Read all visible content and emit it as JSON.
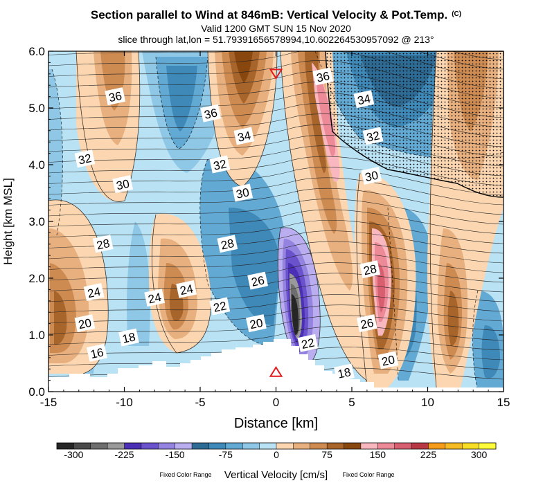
{
  "header": {
    "title": "Section parallel to Wind at 846mB: Vertical Velocity & Pot.Temp.",
    "title_mark": "(C)",
    "valid": "Valid 1200 GMT SUN 15 Nov 2020",
    "slice": "slice through lat,lon = 51.79391656578994,10.602264530957092 @ 213°"
  },
  "chart_data": {
    "type": "heatmap",
    "title": "Section parallel to Wind at 846mB: Vertical Velocity & Pot.Temp.",
    "xlabel": "Distance [km]",
    "ylabel": "Height [km MSL]",
    "xlim": [
      -15,
      15
    ],
    "ylim": [
      0.0,
      6.0
    ],
    "x_ticks": [
      -15,
      -10,
      -5,
      0,
      5,
      10,
      15
    ],
    "x_tick_labels": [
      "-15",
      "-10",
      "-5",
      "0",
      "5",
      "10",
      "15"
    ],
    "y_ticks": [
      0,
      1,
      2,
      3,
      4,
      5,
      6
    ],
    "y_tick_labels": [
      "0.0",
      "1.0",
      "2.0",
      "3.0",
      "4.0",
      "5.0",
      "6.0"
    ],
    "contour_labels": [
      {
        "text": "36",
        "x": -10.6,
        "y": 5.2
      },
      {
        "text": "36",
        "x": -4.3,
        "y": 4.9
      },
      {
        "text": "34",
        "x": -2.1,
        "y": 4.5
      },
      {
        "text": "32",
        "x": -12.6,
        "y": 4.1
      },
      {
        "text": "32",
        "x": -3.7,
        "y": 4.0
      },
      {
        "text": "30",
        "x": -10.1,
        "y": 3.65
      },
      {
        "text": "30",
        "x": -2.2,
        "y": 3.5
      },
      {
        "text": "28",
        "x": -11.4,
        "y": 2.6
      },
      {
        "text": "28",
        "x": -3.2,
        "y": 2.6
      },
      {
        "text": "26",
        "x": -1.2,
        "y": 1.95
      },
      {
        "text": "24",
        "x": -12.0,
        "y": 1.75
      },
      {
        "text": "24",
        "x": -8.0,
        "y": 1.65
      },
      {
        "text": "24",
        "x": -5.9,
        "y": 1.8
      },
      {
        "text": "22",
        "x": -3.7,
        "y": 1.5
      },
      {
        "text": "20",
        "x": -12.6,
        "y": 1.2
      },
      {
        "text": "20",
        "x": -1.3,
        "y": 1.2
      },
      {
        "text": "18",
        "x": -9.7,
        "y": 0.95
      },
      {
        "text": "16",
        "x": -11.8,
        "y": 0.68
      },
      {
        "text": "22",
        "x": 2.1,
        "y": 0.85
      },
      {
        "text": "18",
        "x": 4.5,
        "y": 0.33
      },
      {
        "text": "36",
        "x": 3.1,
        "y": 5.55
      },
      {
        "text": "34",
        "x": 5.8,
        "y": 5.15
      },
      {
        "text": "32",
        "x": 6.4,
        "y": 4.5
      },
      {
        "text": "30",
        "x": 6.3,
        "y": 3.8
      },
      {
        "text": "28",
        "x": 6.2,
        "y": 2.15
      },
      {
        "text": "26",
        "x": 6.0,
        "y": 1.2
      },
      {
        "text": "20",
        "x": 7.4,
        "y": 0.55
      }
    ],
    "markers": [
      {
        "symbol": "down-triangle",
        "x": 0.0,
        "y": 5.6,
        "color": "#e41a1c"
      },
      {
        "symbol": "up-triangle",
        "x": 0.0,
        "y": 0.35,
        "color": "#e41a1c"
      }
    ],
    "colorbar": {
      "label": "Vertical Velocity [cm/s]",
      "note_left": "Fixed Color Range",
      "note_right": "Fixed Color Range",
      "tick_labels": [
        "-300",
        "-225",
        "-150",
        "-75",
        "0",
        "75",
        "150",
        "225",
        "300"
      ],
      "colors": [
        "#262626",
        "#4a4a4a",
        "#6e6e6e",
        "#9a9a9a",
        "#4b2fb4",
        "#6a52cc",
        "#9583e0",
        "#bbaef0",
        "#2e6b94",
        "#3f89b8",
        "#62a9d4",
        "#8fc8e6",
        "#b9e2f4",
        "#fbd6b0",
        "#e8b07e",
        "#cd8b52",
        "#a8652b",
        "#87470f",
        "#f9b8c0",
        "#ec8a98",
        "#d85f70",
        "#b83945",
        "#f59d1a",
        "#f5bd22",
        "#f8df25",
        "#fffc3a"
      ]
    }
  }
}
